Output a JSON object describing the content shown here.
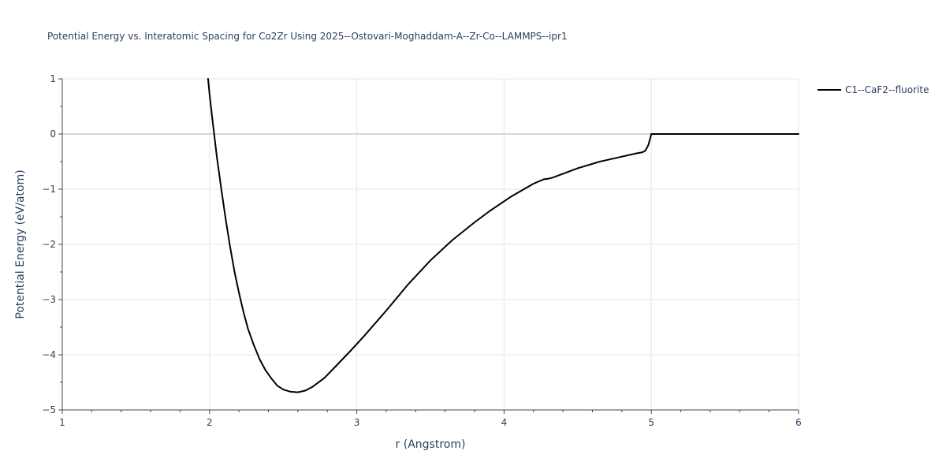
{
  "chart_data": {
    "type": "line",
    "title": "Potential Energy vs. Interatomic Spacing for Co2Zr Using 2025--Ostovari-Moghaddam-A--Zr-Co--LAMMPS--ipr1",
    "xlabel": "r (Angstrom)",
    "ylabel": "Potential Energy (eV/atom)",
    "xlim": [
      1,
      6
    ],
    "ylim": [
      -5,
      1
    ],
    "x_ticks": [
      1,
      2,
      3,
      4,
      5,
      6
    ],
    "x_tick_labels": [
      "1",
      "2",
      "3",
      "4",
      "5",
      "6"
    ],
    "y_ticks": [
      -5,
      -4,
      -3,
      -2,
      -1,
      0,
      1
    ],
    "y_tick_labels": [
      "−5",
      "−4",
      "−3",
      "−2",
      "−1",
      "0",
      "1"
    ],
    "grid": true,
    "legend_position": "top-right outside",
    "series": [
      {
        "name": "C1--CaF2--fluorite",
        "color": "#000000",
        "x": [
          1.99,
          2.0,
          2.02,
          2.05,
          2.08,
          2.11,
          2.14,
          2.17,
          2.2,
          2.23,
          2.26,
          2.3,
          2.34,
          2.38,
          2.42,
          2.46,
          2.5,
          2.55,
          2.6,
          2.65,
          2.7,
          2.78,
          2.86,
          2.95,
          3.05,
          3.2,
          3.35,
          3.5,
          3.65,
          3.8,
          3.9,
          4.05,
          4.2,
          4.27,
          4.3,
          4.33,
          4.4,
          4.5,
          4.65,
          4.8,
          4.9,
          4.94,
          4.96,
          4.98,
          5.0,
          5.5,
          6.0
        ],
        "y": [
          1.0,
          0.72,
          0.25,
          -0.42,
          -1.0,
          -1.55,
          -2.05,
          -2.5,
          -2.88,
          -3.22,
          -3.52,
          -3.82,
          -4.08,
          -4.28,
          -4.43,
          -4.56,
          -4.63,
          -4.67,
          -4.68,
          -4.65,
          -4.58,
          -4.42,
          -4.2,
          -3.95,
          -3.66,
          -3.2,
          -2.72,
          -2.29,
          -1.92,
          -1.6,
          -1.4,
          -1.13,
          -0.9,
          -0.82,
          -0.81,
          -0.79,
          -0.72,
          -0.62,
          -0.5,
          -0.41,
          -0.35,
          -0.33,
          -0.3,
          -0.2,
          0.0,
          0.0,
          0.0
        ]
      }
    ]
  }
}
